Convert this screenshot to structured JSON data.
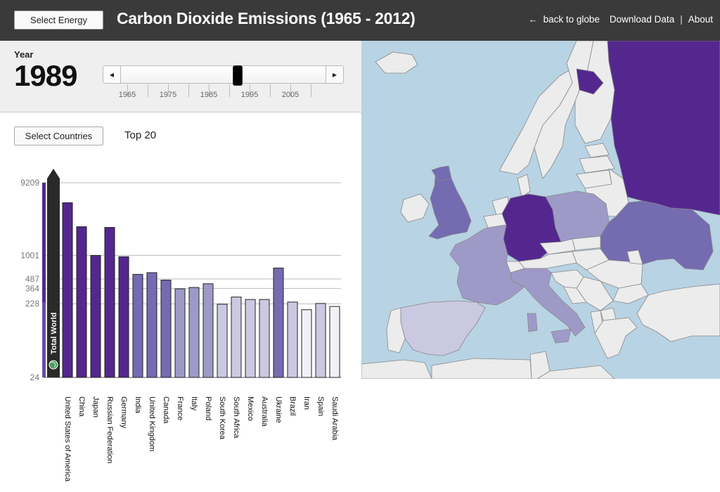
{
  "header": {
    "select_energy_label": "Select Energy",
    "title": "Carbon Dioxide Emissions (1965 - 2012)",
    "back_label": "back to globe",
    "download_label": "Download Data",
    "separator": "|",
    "about_label": "About",
    "background": "#3a3a3a"
  },
  "year_panel": {
    "label": "Year",
    "value": "1989",
    "slider": {
      "min": 1965,
      "max": 2012,
      "value": 1989
    },
    "tick_labels": [
      "1965",
      "1975",
      "1985",
      "1995",
      "2005"
    ]
  },
  "controls": {
    "select_countries_label": "Select Countries",
    "top_label": "Top 20"
  },
  "chart_data": {
    "type": "bar",
    "scale": "log",
    "y_ticks": [
      9209,
      1001,
      487,
      364,
      228,
      24
    ],
    "ylim": [
      24,
      9209
    ],
    "total": {
      "label": "Total World",
      "value": 9209
    },
    "categories": [
      "United States of America",
      "China",
      "Japan",
      "Russian Federation",
      "Germany",
      "India",
      "United Kingdom",
      "Canada",
      "France",
      "Italy",
      "Poland",
      "South Korea",
      "South Africa",
      "Mexico",
      "Australia",
      "Ukraine",
      "Brazil",
      "Iran",
      "Spain",
      "Saudi Arabia"
    ],
    "values": [
      5000,
      2400,
      1000,
      2350,
      960,
      560,
      590,
      470,
      360,
      375,
      420,
      225,
      280,
      260,
      260,
      680,
      240,
      190,
      230,
      210
    ],
    "bar_colors": [
      "#54278f",
      "#54278f",
      "#54278f",
      "#54278f",
      "#54278f",
      "#756bb1",
      "#756bb1",
      "#756bb1",
      "#9e9ac8",
      "#9e9ac8",
      "#9e9ac8",
      "#cbc9e2",
      "#cbc9e2",
      "#cbc9e2",
      "#cbc9e2",
      "#756bb1",
      "#cbc9e2",
      "#f2f0f7",
      "#cbc9e2",
      "#f2f0f7"
    ]
  },
  "map": {
    "sea_color": "#b8d3e4",
    "land_color": "#ececec",
    "border_color": "#888888"
  },
  "icons": {
    "back": "arrow-left-icon",
    "slider_left": "triangle-left-icon",
    "slider_right": "triangle-right-icon",
    "globe": "globe-icon"
  }
}
